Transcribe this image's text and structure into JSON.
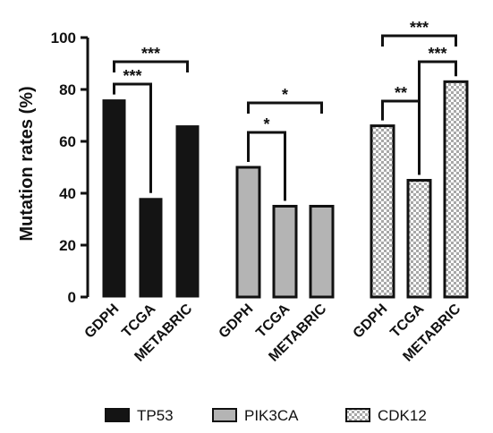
{
  "chart_data": {
    "type": "bar",
    "ylabel": "Mutation rates (%)",
    "ylim": [
      0,
      100
    ],
    "yticks": [
      0,
      20,
      40,
      60,
      80,
      100
    ],
    "groups": [
      {
        "name": "TP53",
        "fill": "solid",
        "color": "#141414",
        "bars": [
          {
            "category": "GDPH",
            "value": 76
          },
          {
            "category": "TCGA",
            "value": 38
          },
          {
            "category": "METABRIC",
            "value": 66
          }
        ],
        "significance": [
          {
            "from": 0,
            "to": 2,
            "label": "***"
          },
          {
            "from": 0,
            "to": 1,
            "label": "***"
          }
        ]
      },
      {
        "name": "PIK3CA",
        "fill": "gray",
        "color": "#b4b4b4",
        "bars": [
          {
            "category": "GDPH",
            "value": 50
          },
          {
            "category": "TCGA",
            "value": 35
          },
          {
            "category": "METABRIC",
            "value": 35
          }
        ],
        "significance": [
          {
            "from": 0,
            "to": 2,
            "label": "*"
          },
          {
            "from": 0,
            "to": 1,
            "label": "*"
          }
        ]
      },
      {
        "name": "CDK12",
        "fill": "checker",
        "color": "#cfcfcf",
        "bars": [
          {
            "category": "GDPH",
            "value": 66
          },
          {
            "category": "TCGA",
            "value": 45
          },
          {
            "category": "METABRIC",
            "value": 83
          }
        ],
        "significance": [
          {
            "from": 0,
            "to": 2,
            "label": "***"
          },
          {
            "from": 0,
            "to": 1,
            "label": "**"
          },
          {
            "from": 1,
            "to": 2,
            "label": "***"
          }
        ]
      }
    ],
    "legend": {
      "position": "bottom",
      "entries": [
        "TP53",
        "PIK3CA",
        "CDK12"
      ]
    },
    "grid": false
  }
}
